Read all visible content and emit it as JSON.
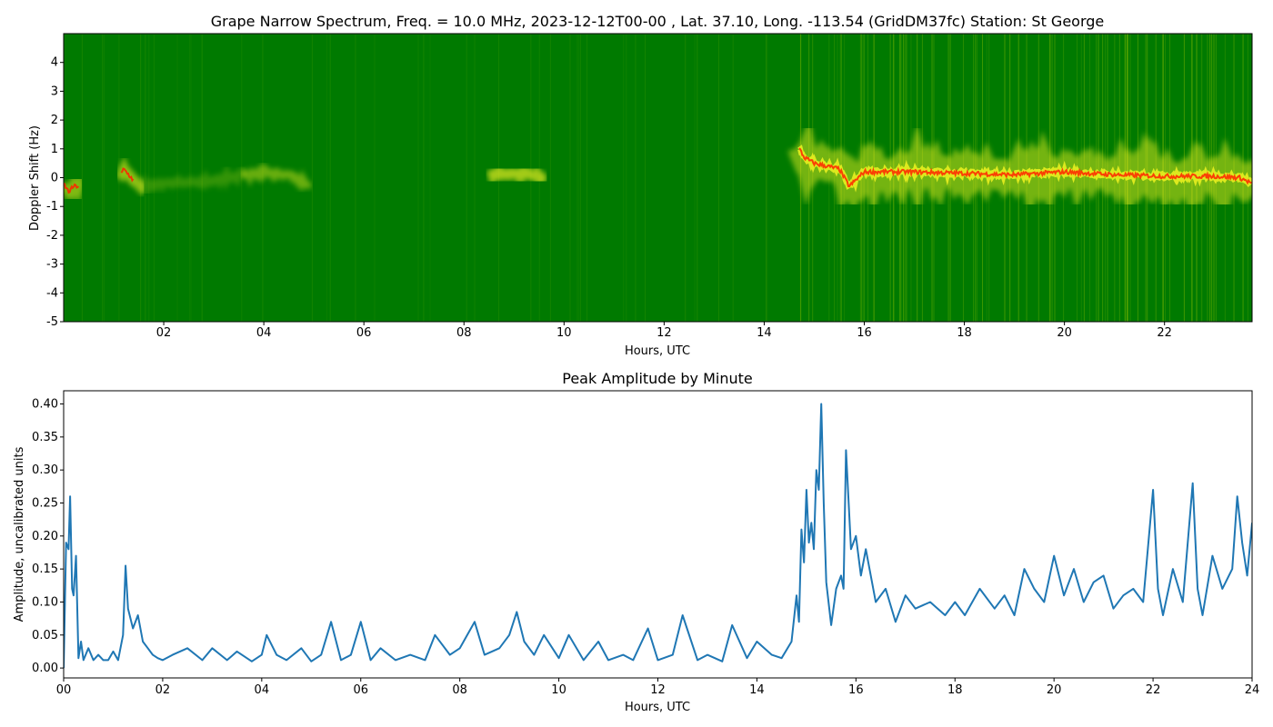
{
  "chart_data": [
    {
      "type": "heatmap",
      "title": "Grape Narrow Spectrum, Freq. = 10.0 MHz, 2023-12-12T00-00 , Lat.  37.10, Long. -113.54 (GridDM37fc) Station: St George",
      "xlabel": "Hours, UTC",
      "ylabel": "Doppler Shift (Hz)",
      "xlim": [
        0,
        23.75
      ],
      "ylim": [
        -5,
        5
      ],
      "x_ticks": [
        "02",
        "04",
        "06",
        "08",
        "10",
        "12",
        "14",
        "16",
        "18",
        "20",
        "22"
      ],
      "x_tick_values": [
        2,
        4,
        6,
        8,
        10,
        12,
        14,
        16,
        18,
        20,
        22
      ],
      "y_ticks": [
        "-5",
        "-4",
        "-3",
        "-2",
        "-1",
        "0",
        "1",
        "2",
        "3",
        "4"
      ],
      "y_tick_values": [
        -5,
        -4,
        -3,
        -2,
        -1,
        0,
        1,
        2,
        3,
        4
      ],
      "colors": {
        "background": "#007a00",
        "signal": "#e8ee20",
        "peak": "#ff2200"
      },
      "doppler_trace": {
        "hours": [
          0.0,
          0.1,
          0.2,
          0.3,
          1.0,
          1.2,
          1.3,
          1.5,
          2.0,
          3.0,
          3.5,
          4.0,
          4.5,
          4.8,
          8.5,
          9.0,
          9.5,
          14.7,
          14.8,
          15.0,
          15.5,
          15.7,
          16.0,
          17.0,
          18.0,
          19.0,
          20.0,
          21.0,
          22.0,
          23.0,
          23.5,
          23.75
        ],
        "doppler_hz": [
          -0.2,
          -0.5,
          -0.3,
          -0.3,
          -0.4,
          0.3,
          0.1,
          -0.3,
          -0.2,
          -0.1,
          0.05,
          0.2,
          0.1,
          -0.2,
          0.1,
          0.15,
          0.05,
          1.0,
          0.7,
          0.5,
          0.3,
          -0.3,
          0.2,
          0.2,
          0.15,
          0.1,
          0.2,
          0.1,
          0.05,
          0.05,
          0.0,
          -0.2
        ]
      }
    },
    {
      "type": "line",
      "title": "Peak Amplitude by Minute",
      "xlabel": "Hours, UTC",
      "ylabel": "Amplitude, uncalibrated units",
      "xlim": [
        0,
        24
      ],
      "ylim": [
        -0.015,
        0.42
      ],
      "x_ticks": [
        "00",
        "02",
        "04",
        "06",
        "08",
        "10",
        "12",
        "14",
        "16",
        "18",
        "20",
        "22",
        "24"
      ],
      "x_tick_values": [
        0,
        2,
        4,
        6,
        8,
        10,
        12,
        14,
        16,
        18,
        20,
        22,
        24
      ],
      "y_ticks": [
        "0.00",
        "0.05",
        "0.10",
        "0.15",
        "0.20",
        "0.25",
        "0.30",
        "0.35",
        "0.40"
      ],
      "y_tick_values": [
        0,
        0.05,
        0.1,
        0.15,
        0.2,
        0.25,
        0.3,
        0.35,
        0.4
      ],
      "line_color": "#1f77b4",
      "series": [
        {
          "x": [
            0.0,
            0.05,
            0.1,
            0.13,
            0.17,
            0.2,
            0.25,
            0.3,
            0.35,
            0.4,
            0.5,
            0.6,
            0.7,
            0.8,
            0.9,
            1.0,
            1.1,
            1.2,
            1.25,
            1.3,
            1.4,
            1.5,
            1.6,
            1.7,
            1.8,
            1.9,
            2.0,
            2.2,
            2.5,
            2.8,
            3.0,
            3.3,
            3.5,
            3.8,
            4.0,
            4.1,
            4.3,
            4.5,
            4.8,
            5.0,
            5.2,
            5.4,
            5.6,
            5.8,
            6.0,
            6.2,
            6.4,
            6.7,
            7.0,
            7.3,
            7.5,
            7.8,
            8.0,
            8.3,
            8.5,
            8.8,
            9.0,
            9.15,
            9.3,
            9.5,
            9.7,
            10.0,
            10.2,
            10.5,
            10.8,
            11.0,
            11.3,
            11.5,
            11.8,
            12.0,
            12.3,
            12.5,
            12.8,
            13.0,
            13.3,
            13.5,
            13.8,
            14.0,
            14.3,
            14.5,
            14.7,
            14.8,
            14.85,
            14.9,
            14.95,
            15.0,
            15.05,
            15.1,
            15.15,
            15.2,
            15.25,
            15.3,
            15.35,
            15.4,
            15.5,
            15.6,
            15.7,
            15.75,
            15.8,
            15.9,
            16.0,
            16.1,
            16.2,
            16.4,
            16.6,
            16.8,
            17.0,
            17.2,
            17.5,
            17.8,
            18.0,
            18.2,
            18.5,
            18.8,
            19.0,
            19.2,
            19.4,
            19.6,
            19.8,
            20.0,
            20.2,
            20.4,
            20.6,
            20.8,
            21.0,
            21.2,
            21.4,
            21.6,
            21.8,
            22.0,
            22.1,
            22.2,
            22.4,
            22.6,
            22.8,
            22.9,
            23.0,
            23.2,
            23.4,
            23.6,
            23.7,
            23.8,
            23.9,
            24.0
          ],
          "values": [
            0.0,
            0.19,
            0.18,
            0.26,
            0.12,
            0.11,
            0.17,
            0.015,
            0.04,
            0.012,
            0.03,
            0.012,
            0.02,
            0.012,
            0.012,
            0.025,
            0.012,
            0.05,
            0.155,
            0.09,
            0.06,
            0.08,
            0.04,
            0.03,
            0.02,
            0.015,
            0.012,
            0.02,
            0.03,
            0.012,
            0.03,
            0.012,
            0.025,
            0.01,
            0.02,
            0.05,
            0.02,
            0.012,
            0.03,
            0.01,
            0.02,
            0.07,
            0.012,
            0.02,
            0.07,
            0.012,
            0.03,
            0.012,
            0.02,
            0.012,
            0.05,
            0.02,
            0.03,
            0.07,
            0.02,
            0.03,
            0.05,
            0.085,
            0.04,
            0.02,
            0.05,
            0.015,
            0.05,
            0.012,
            0.04,
            0.012,
            0.02,
            0.012,
            0.06,
            0.012,
            0.02,
            0.08,
            0.012,
            0.02,
            0.01,
            0.065,
            0.015,
            0.04,
            0.02,
            0.015,
            0.04,
            0.11,
            0.07,
            0.21,
            0.16,
            0.27,
            0.19,
            0.22,
            0.18,
            0.3,
            0.27,
            0.4,
            0.25,
            0.13,
            0.065,
            0.12,
            0.14,
            0.12,
            0.33,
            0.18,
            0.2,
            0.14,
            0.18,
            0.1,
            0.12,
            0.07,
            0.11,
            0.09,
            0.1,
            0.08,
            0.1,
            0.08,
            0.12,
            0.09,
            0.11,
            0.08,
            0.15,
            0.12,
            0.1,
            0.17,
            0.11,
            0.15,
            0.1,
            0.13,
            0.14,
            0.09,
            0.11,
            0.12,
            0.1,
            0.27,
            0.12,
            0.08,
            0.15,
            0.1,
            0.28,
            0.12,
            0.08,
            0.17,
            0.12,
            0.15,
            0.26,
            0.19,
            0.14,
            0.22
          ]
        }
      ]
    }
  ]
}
